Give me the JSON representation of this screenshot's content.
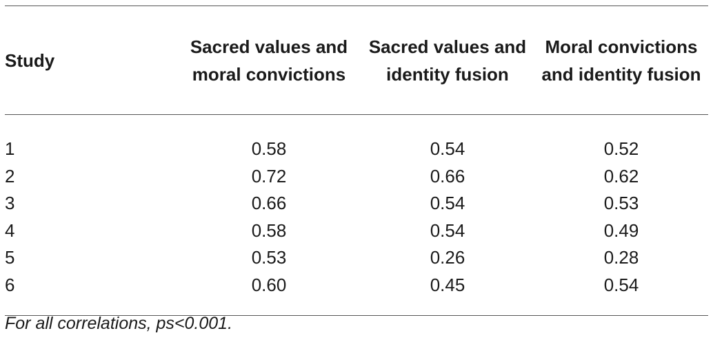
{
  "table": {
    "columns": [
      "Study",
      "Sacred values and moral convictions",
      "Sacred values and identity fusion",
      "Moral convictions and identity fusion"
    ],
    "rows": [
      [
        "1",
        "0.58",
        "0.54",
        "0.52"
      ],
      [
        "2",
        "0.72",
        "0.66",
        "0.62"
      ],
      [
        "3",
        "0.66",
        "0.54",
        "0.53"
      ],
      [
        "4",
        "0.58",
        "0.54",
        "0.49"
      ],
      [
        "5",
        "0.53",
        "0.26",
        "0.28"
      ],
      [
        "6",
        "0.60",
        "0.45",
        "0.54"
      ]
    ]
  },
  "footnote": "For all correlations, ps<0.001."
}
